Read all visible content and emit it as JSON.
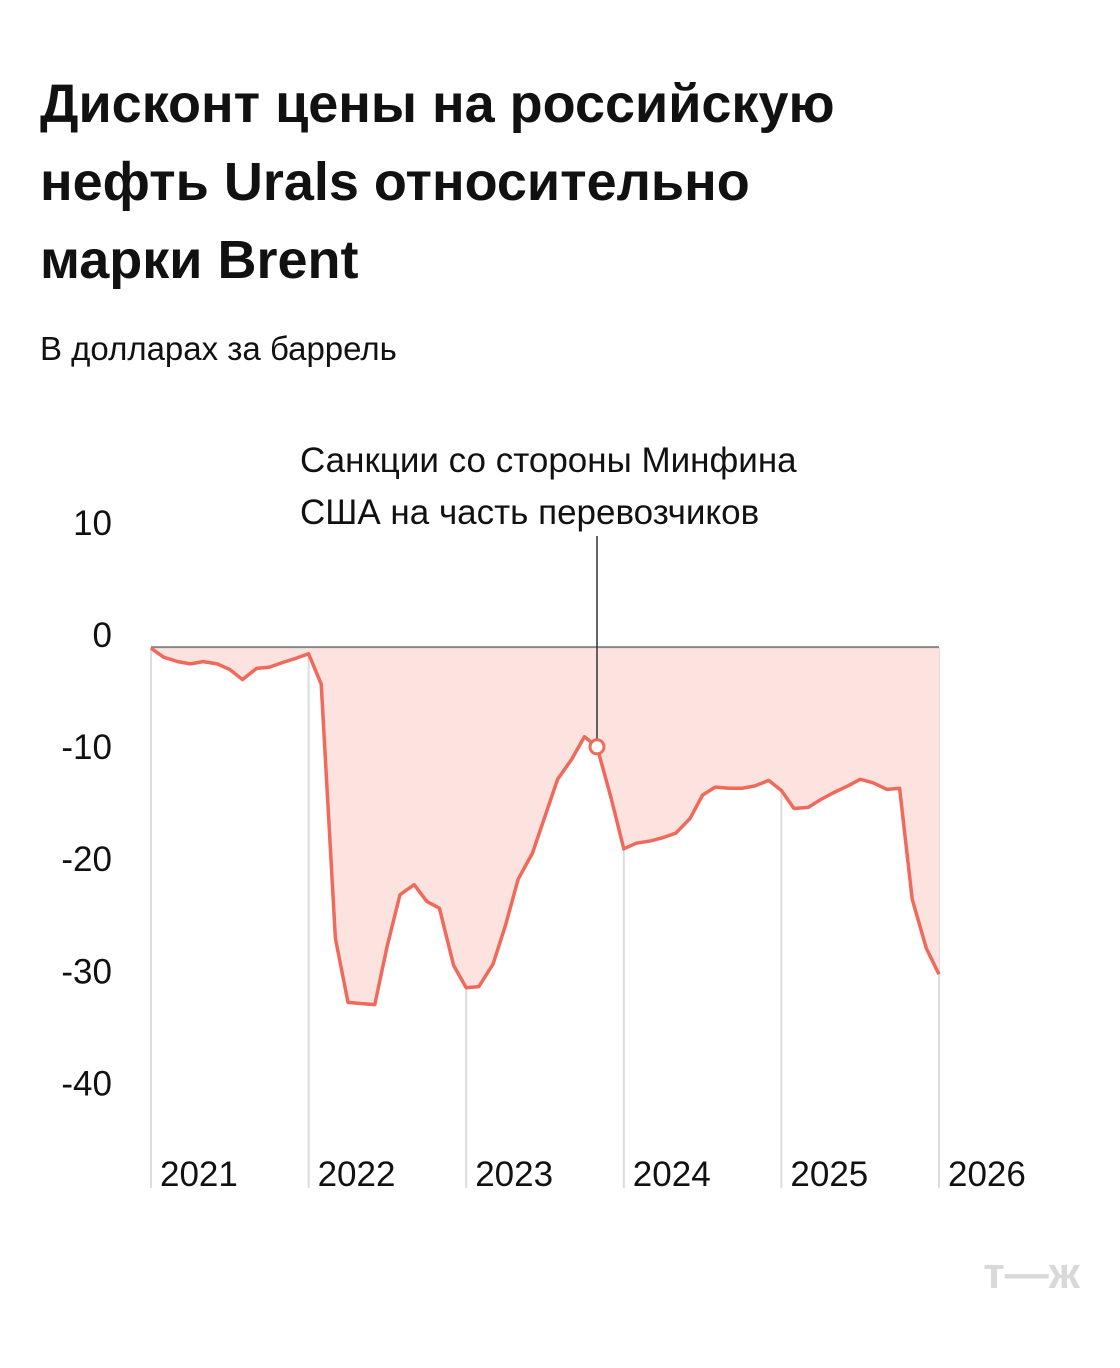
{
  "chart_data": {
    "type": "area-line",
    "title": [
      "Дисконт цены на российскую",
      "нефть Urals относительно",
      "марки Brent"
    ],
    "subtitle": "В долларах за баррель",
    "x": [
      2021.0,
      2021.08,
      2021.17,
      2021.25,
      2021.33,
      2021.42,
      2021.5,
      2021.58,
      2021.67,
      2021.75,
      2021.83,
      2021.92,
      2022.0,
      2022.08,
      2022.17,
      2022.25,
      2022.33,
      2022.42,
      2022.5,
      2022.58,
      2022.67,
      2022.75,
      2022.83,
      2022.92,
      2023.0,
      2023.08,
      2023.17,
      2023.25,
      2023.33,
      2023.42,
      2023.5,
      2023.58,
      2023.67,
      2023.75,
      2023.83,
      2023.92,
      2024.0,
      2024.08,
      2024.17,
      2024.25,
      2024.33,
      2024.42,
      2024.5,
      2024.58,
      2024.67,
      2024.75,
      2024.83,
      2024.92,
      2025.0,
      2025.08,
      2025.17,
      2025.25,
      2025.33,
      2025.42,
      2025.5,
      2025.58,
      2025.67,
      2025.75,
      2025.83,
      2025.92,
      2026.0
    ],
    "values": [
      -0.1,
      -0.9,
      -1.3,
      -1.5,
      -1.3,
      -1.5,
      -2.0,
      -2.9,
      -1.9,
      -1.8,
      -1.4,
      -1.0,
      -0.6,
      -3.3,
      -26.0,
      -31.7,
      -31.8,
      -31.9,
      -26.6,
      -22.1,
      -21.2,
      -22.7,
      -23.3,
      -28.4,
      -30.4,
      -30.3,
      -28.3,
      -24.8,
      -20.7,
      -18.4,
      -15.1,
      -11.8,
      -10.0,
      -8.0,
      -8.9,
      -13.5,
      -18.0,
      -17.5,
      -17.3,
      -17.0,
      -16.6,
      -15.3,
      -13.2,
      -12.5,
      -12.6,
      -12.6,
      -12.4,
      -11.9,
      -12.8,
      -14.4,
      -14.3,
      -13.6,
      -13.0,
      -12.4,
      -11.8,
      -12.1,
      -12.7,
      -12.6,
      -22.5,
      -26.9,
      -29.2
    ],
    "color": "#ef6a5a",
    "fill_color": "#fde3e0",
    "xlim": [
      2021,
      2026
    ],
    "xticks": [
      2021,
      2022,
      2023,
      2024,
      2025,
      2026
    ],
    "ylim": [
      -48,
      10
    ],
    "yticks": [
      10,
      0,
      -10,
      -20,
      -30,
      -40
    ],
    "annotation": {
      "lines": [
        "Санкции со стороны Минфина",
        "США на часть перевозчиков"
      ],
      "x": 2023.83,
      "y": -8.9
    },
    "logo": "т—ж"
  }
}
